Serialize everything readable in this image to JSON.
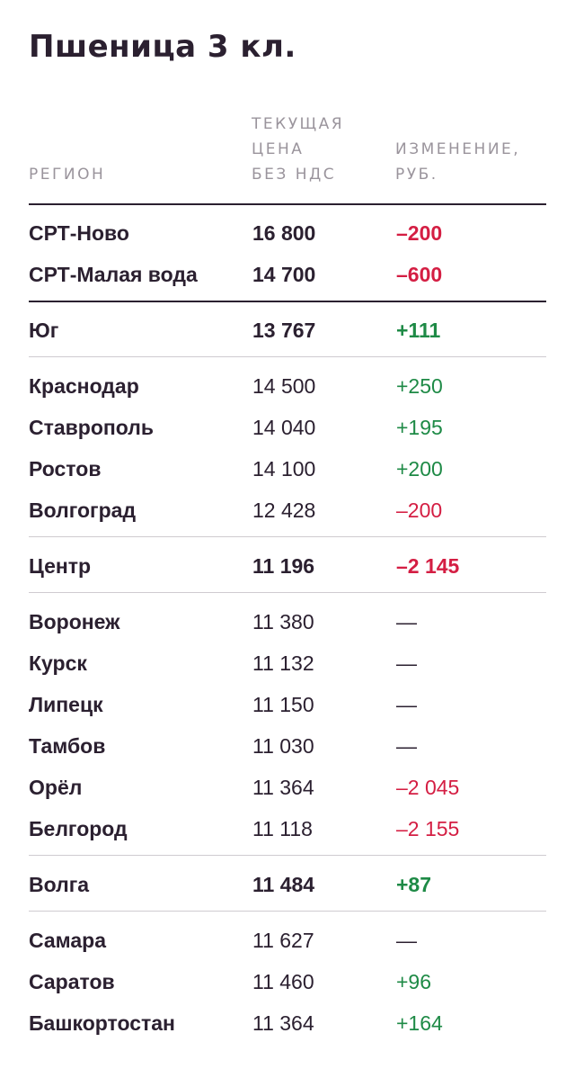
{
  "title": "Пшеница 3 кл.",
  "header": {
    "region": "РЕГИОН",
    "price": "ТЕКУЩАЯ\nЦЕНА\nБЕЗ НДС",
    "change": "ИЗМЕНЕНИЕ,\nРУБ."
  },
  "rows": [
    {
      "region": "СРТ-Ново",
      "price": "16 800",
      "change": "–200",
      "bold": true,
      "trend": "neg"
    },
    {
      "region": "СРТ-Малая вода",
      "price": "14 700",
      "change": "–600",
      "bold": true,
      "trend": "neg"
    },
    {
      "region": "Юг",
      "price": "13 767",
      "change": "+111",
      "bold": true,
      "trend": "pos"
    },
    {
      "region": "Краснодар",
      "price": "14 500",
      "change": "+250",
      "bold": false,
      "trend": "pos"
    },
    {
      "region": "Ставрополь",
      "price": "14 040",
      "change": "+195",
      "bold": false,
      "trend": "pos"
    },
    {
      "region": "Ростов",
      "price": "14 100",
      "change": "+200",
      "bold": false,
      "trend": "pos"
    },
    {
      "region": "Волгоград",
      "price": "12 428",
      "change": "–200",
      "bold": false,
      "trend": "neg"
    },
    {
      "region": "Центр",
      "price": "11 196",
      "change": "–2 145",
      "bold": true,
      "trend": "neg"
    },
    {
      "region": "Воронеж",
      "price": "11 380",
      "change": "—",
      "bold": false,
      "trend": "neu"
    },
    {
      "region": "Курск",
      "price": "11 132",
      "change": "—",
      "bold": false,
      "trend": "neu"
    },
    {
      "region": "Липецк",
      "price": "11 150",
      "change": "—",
      "bold": false,
      "trend": "neu"
    },
    {
      "region": "Тамбов",
      "price": "11 030",
      "change": "—",
      "bold": false,
      "trend": "neu"
    },
    {
      "region": "Орёл",
      "price": "11 364",
      "change": "–2 045",
      "bold": false,
      "trend": "neg"
    },
    {
      "region": "Белгород",
      "price": "11 118",
      "change": "–2 155",
      "bold": false,
      "trend": "neg"
    },
    {
      "region": "Волга",
      "price": "11 484",
      "change": "+87",
      "bold": true,
      "trend": "pos"
    },
    {
      "region": "Самара",
      "price": "11 627",
      "change": "—",
      "bold": false,
      "trend": "neu"
    },
    {
      "region": "Саратов",
      "price": "11 460",
      "change": "+96",
      "bold": false,
      "trend": "pos"
    },
    {
      "region": "Башкортостан",
      "price": "11 364",
      "change": "+164",
      "bold": false,
      "trend": "pos"
    }
  ],
  "colors": {
    "negative": "#d41e43",
    "positive": "#1e8a46",
    "text": "#2b2030",
    "muted": "#9a949c"
  }
}
